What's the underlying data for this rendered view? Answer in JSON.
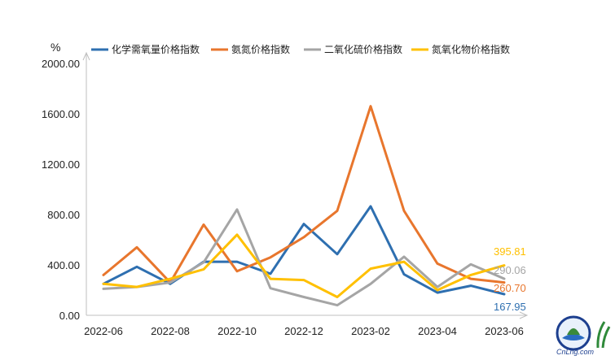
{
  "chart_data": {
    "type": "line",
    "unit": "%",
    "x": [
      "2022-06",
      "2022-07",
      "2022-08",
      "2022-09",
      "2022-10",
      "2022-11",
      "2022-12",
      "2023-01",
      "2023-02",
      "2023-03",
      "2023-04",
      "2023-05",
      "2023-06"
    ],
    "x_tick_labels": [
      "2022-06",
      "2022-08",
      "2022-10",
      "2022-12",
      "2023-02",
      "2023-04",
      "2023-06"
    ],
    "y_tick_labels": [
      "0.00",
      "400.00",
      "800.00",
      "1200.00",
      "1600.00",
      "2000.00"
    ],
    "ylim": [
      0,
      2000
    ],
    "grid": false,
    "legend_position": "top",
    "series": [
      {
        "name": "化学需氧量价格指数",
        "color": "#2E6FB0",
        "values": [
          250,
          385,
          250,
          425,
          425,
          330,
          725,
          485,
          865,
          325,
          180,
          235,
          167.95
        ],
        "end_label": "167.95"
      },
      {
        "name": "氨氮价格指数",
        "color": "#E8762D",
        "values": [
          320,
          540,
          260,
          720,
          350,
          460,
          620,
          830,
          1660,
          830,
          410,
          290,
          260.7
        ],
        "end_label": "260.70"
      },
      {
        "name": "二氧化硫价格指数",
        "color": "#A5A5A5",
        "values": [
          210,
          225,
          260,
          420,
          840,
          215,
          145,
          80,
          250,
          465,
          225,
          405,
          290.06
        ],
        "end_label": "290.06"
      },
      {
        "name": "氮氧化物价格指数",
        "color": "#FFC000",
        "values": [
          250,
          225,
          290,
          365,
          640,
          290,
          280,
          145,
          370,
          425,
          200,
          320,
          395.81
        ],
        "end_label": "395.81"
      }
    ]
  },
  "logo": {
    "text": "CnLng.com"
  }
}
